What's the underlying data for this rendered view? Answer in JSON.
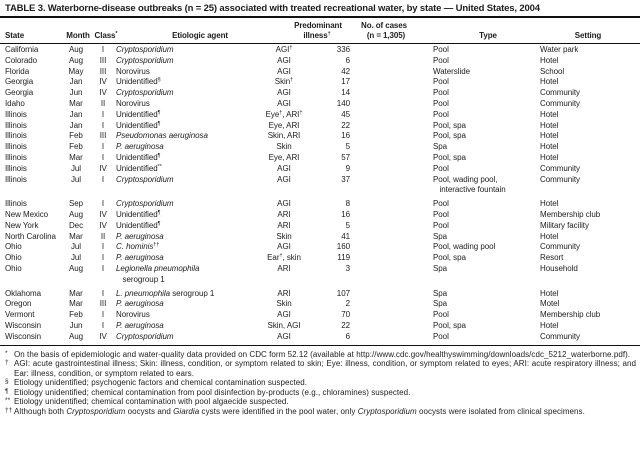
{
  "title": "TABLE 3. Waterborne-disease outbreaks (n = 25) associated with treated recreational water, by state — United States, 2004",
  "table": {
    "headers": {
      "state": "State",
      "month": "Month",
      "class": "Class^*^",
      "agent": "Etiologic agent",
      "illness_line1": "Predominant",
      "illness_line2": "illness^†^",
      "cases_line1": "No. of cases",
      "cases_line2": "(n = 1,305)",
      "type": "Type",
      "setting": "Setting"
    },
    "rows": [
      [
        "California",
        "Aug",
        "I",
        "*Cryptosporidium*",
        "AGI^†^",
        "336",
        "Pool",
        "Water park"
      ],
      [
        "Colorado",
        "Aug",
        "III",
        "*Cryptosporidium*",
        "AGI",
        "6",
        "Pool",
        "Hotel"
      ],
      [
        "Florida",
        "May",
        "III",
        "Norovirus",
        "AGI",
        "42",
        "Waterslide",
        "School"
      ],
      [
        "Georgia",
        "Jan",
        "IV",
        "Unidentified^§^",
        "Skin^†^",
        "17",
        "Pool",
        "Hotel"
      ],
      [
        "Georgia",
        "Jun",
        "IV",
        "*Cryptosporidium*",
        "AGI",
        "14",
        "Pool",
        "Community"
      ],
      [
        "Idaho",
        "Mar",
        "II",
        "Norovirus",
        "AGI",
        "140",
        "Pool",
        "Community"
      ],
      [
        "Illinois",
        "Jan",
        "I",
        "Unidentified^¶^",
        "Eye^†^, ARI^†^",
        "45",
        "Pool",
        "Hotel"
      ],
      [
        "Illinois",
        "Jan",
        "I",
        "Unidentified^¶^",
        "Eye, ARI",
        "22",
        "Pool, spa",
        "Hotel"
      ],
      [
        "Illinois",
        "Feb",
        "III",
        "*Pseudomonas aeruginosa*",
        "Skin, ARI",
        "16",
        "Pool, spa",
        "Hotel"
      ],
      [
        "Illinois",
        "Feb",
        "I",
        "*P. aeruginosa*",
        "Skin",
        "5",
        "Spa",
        "Hotel"
      ],
      [
        "Illinois",
        "Mar",
        "I",
        "Unidentified^¶^",
        "Eye, ARI",
        "57",
        "Pool, spa",
        "Hotel"
      ],
      [
        "Illinois",
        "Jul",
        "IV",
        "Unidentified^**^",
        "AGI",
        "9",
        "Pool",
        "Community"
      ],
      [
        "Illinois",
        "Jul",
        "I",
        "*Cryptosporidium*",
        "AGI",
        "37",
        "Pool, wading pool,\ninteractive fountain",
        "Community"
      ],
      [
        "Illinois",
        "Sep",
        "I",
        "*Cryptosporidium*",
        "AGI",
        "8",
        "Pool",
        "Hotel"
      ],
      [
        "New Mexico",
        "Aug",
        "IV",
        "Unidentified^¶^",
        "ARI",
        "16",
        "Pool",
        "Membership club"
      ],
      [
        "New York",
        "Dec",
        "IV",
        "Unidentified^¶^",
        "ARI",
        "5",
        "Pool",
        "Military facility"
      ],
      [
        "North Carolina",
        "Mar",
        "II",
        "*P. aeruginosa*",
        "Skin",
        "41",
        "Spa",
        "Hotel"
      ],
      [
        "Ohio",
        "Jul",
        "I",
        "*C. hominis*^††^",
        "AGI",
        "160",
        "Pool, wading pool",
        "Community"
      ],
      [
        "Ohio",
        "Jul",
        "I",
        "*P. aeruginosa*",
        "Ear^†^, skin",
        "119",
        "Pool, spa",
        "Resort"
      ],
      [
        "Ohio",
        "Aug",
        "I",
        "*Legionella pneumophila*\nserogroup 1",
        "ARI",
        "3",
        "Spa",
        "Household"
      ],
      [
        "Oklahoma",
        "Mar",
        "I",
        "*L. pneumophila* serogroup 1",
        "ARI",
        "107",
        "Spa",
        "Hotel"
      ],
      [
        "Oregon",
        "Mar",
        "III",
        "*P. aeruginosa*",
        "Skin",
        "2",
        "Spa",
        "Motel"
      ],
      [
        "Vermont",
        "Feb",
        "I",
        "Norovirus",
        "AGI",
        "70",
        "Pool",
        "Membership club"
      ],
      [
        "Wisconsin",
        "Jun",
        "I",
        "*P. aeruginosa*",
        "Skin, AGI",
        "22",
        "Pool, spa",
        "Hotel"
      ],
      [
        "Wisconsin",
        "Aug",
        "IV",
        "*Cryptosporidium*",
        "AGI",
        "6",
        "Pool",
        "Community"
      ]
    ]
  },
  "footnotes": [
    {
      "marker": "*",
      "text": "On the basis of epidemiologic and water-quality data provided on CDC form 52.12 (available at http://www.cdc.gov/healthyswimming/downloads/​cdc_5212_waterborne.pdf)."
    },
    {
      "marker": "†",
      "text": "AGI: acute gastrointestinal illness; Skin: illness, condition, or symptom related to skin; Eye: illness, condition, or symptom related to eyes; ARI: acute respiratory illness; and Ear: illness, condition, or symptom related to ears."
    },
    {
      "marker": "§",
      "text": "Etiology unidentified; psychogenic factors and chemical contamination suspected."
    },
    {
      "marker": "¶",
      "text": "Etiology unidentified; chemical contamination from pool disinfection by-products (e.g., chloramines) suspected."
    },
    {
      "marker": "**",
      "text": "Etiology unidentified; chemical contamination with pool algaecide suspected."
    },
    {
      "marker": "††",
      "text": "Although both *Cryptosporidium* oocysts and *Giardia* cysts were identified in the pool water, only *Cryptosporidium* oocysts were isolated from clinical specimens."
    }
  ]
}
